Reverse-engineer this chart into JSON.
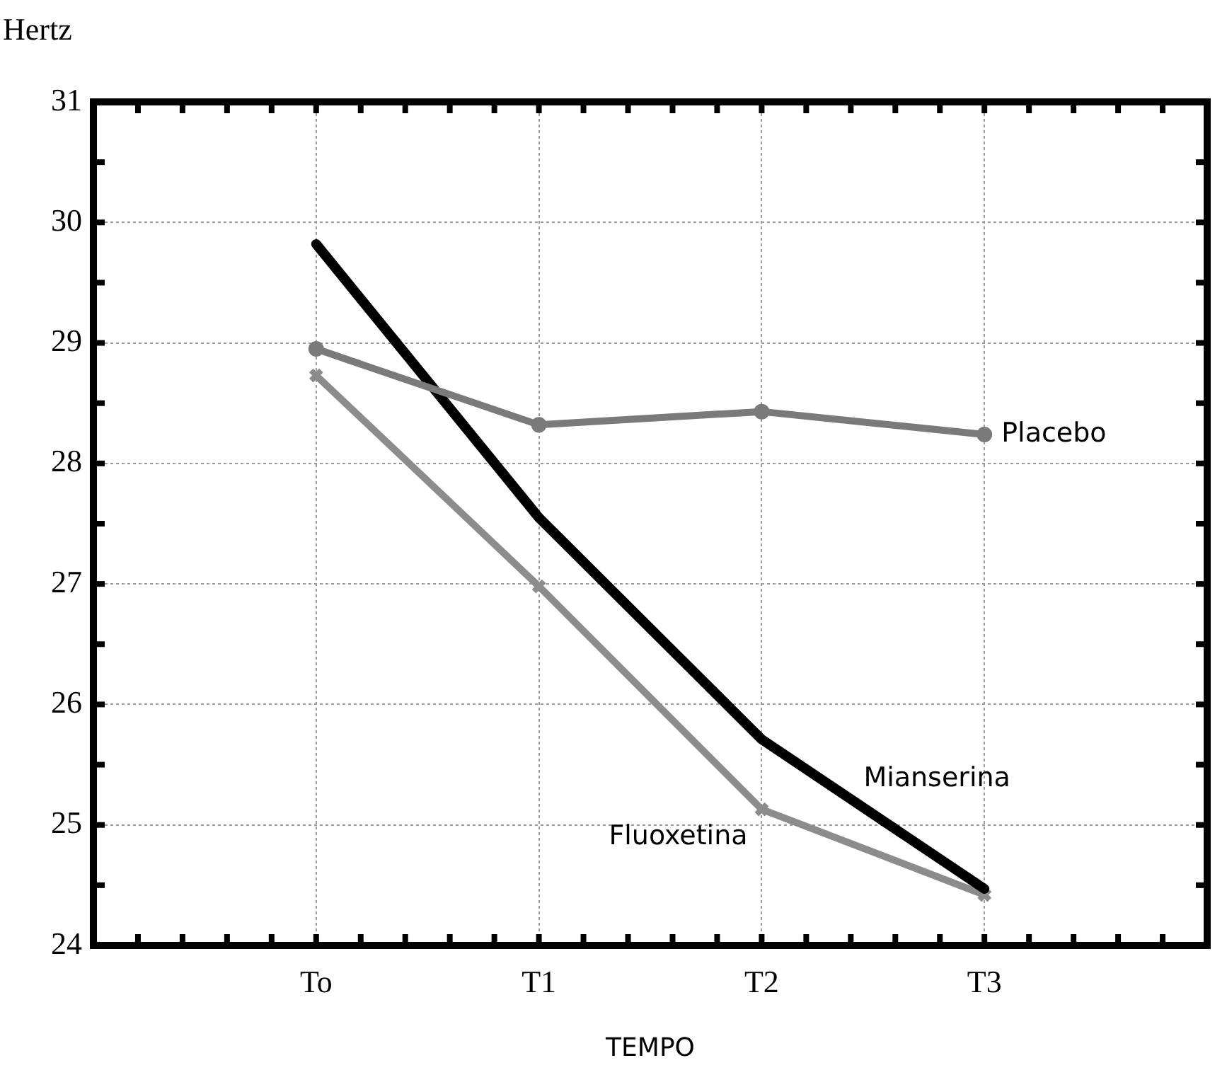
{
  "chart_data": {
    "type": "line",
    "ylabel": "Hertz",
    "xlabel": "TEMPO",
    "categories": [
      null,
      "To",
      "T1",
      "T2",
      "T3",
      null
    ],
    "ylim": [
      24,
      31
    ],
    "yticks": [
      24,
      25,
      26,
      27,
      28,
      29,
      30,
      31
    ],
    "grid": true,
    "legend": false,
    "line_style": "solid",
    "series": [
      {
        "name": "Placebo",
        "color": "#7a7a7a",
        "marker": "circle",
        "values": [
          null,
          28.95,
          28.32,
          28.43,
          28.24,
          null
        ]
      },
      {
        "name": "Mianserina",
        "color": "#000000",
        "marker": "none",
        "values": [
          null,
          29.82,
          27.55,
          25.71,
          24.47,
          null
        ]
      },
      {
        "name": "Fluoxetina",
        "color": "#8c8c8c",
        "marker": "cross",
        "values": [
          null,
          28.73,
          26.98,
          25.13,
          24.42,
          null
        ]
      }
    ]
  }
}
